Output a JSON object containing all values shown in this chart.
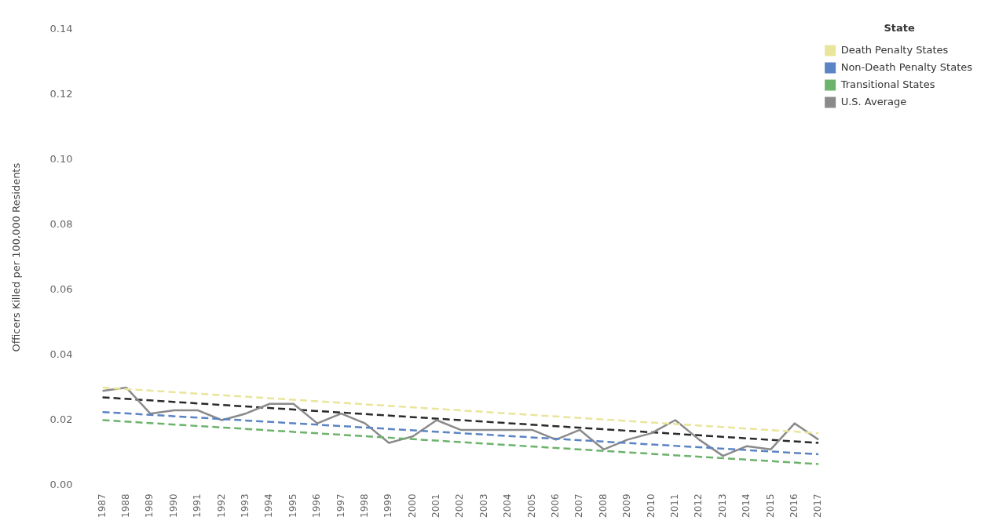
{
  "chart_data": {
    "type": "line",
    "ylabel": "Officers Killed per 100,000 Residents",
    "legend_title": "State",
    "legend": "top right",
    "grid": false,
    "marker": "none",
    "categories": [
      "1987",
      "1988",
      "1989",
      "1990",
      "1991",
      "1992",
      "1993",
      "1994",
      "1995",
      "1996",
      "1997",
      "1998",
      "1999",
      "2000",
      "2001",
      "2002",
      "2003",
      "2004",
      "2005",
      "2006",
      "2007",
      "2008",
      "2009",
      "2010",
      "2011",
      "2012",
      "2013",
      "2014",
      "2015",
      "2016",
      "2017"
    ],
    "ylim": [
      0,
      0.14
    ],
    "yticks": [
      {
        "value": 0,
        "label": "0.00"
      },
      {
        "value": 0.02,
        "label": "0.02"
      },
      {
        "value": 0.04,
        "label": "0.04"
      },
      {
        "value": 0.06,
        "label": "0.06"
      },
      {
        "value": 0.08,
        "label": "0.08"
      },
      {
        "value": 0.1,
        "label": "0.10"
      },
      {
        "value": 0.12,
        "label": "0.12"
      },
      {
        "value": 0.14,
        "label": "0.14"
      }
    ],
    "series": [
      {
        "name": "Death Penalty States",
        "color": "#e9e59a",
        "line_style": "dashed",
        "values": [
          0.03,
          null,
          null,
          null,
          null,
          null,
          null,
          null,
          null,
          null,
          null,
          null,
          null,
          null,
          null,
          null,
          null,
          null,
          null,
          null,
          null,
          null,
          null,
          null,
          null,
          null,
          null,
          null,
          null,
          null,
          0.016
        ]
      },
      {
        "name": "Non-Death Penalty States",
        "color": "#5b84c4",
        "line_style": "dashed",
        "values": [
          0.0225,
          null,
          null,
          null,
          null,
          null,
          null,
          null,
          null,
          null,
          null,
          null,
          null,
          null,
          null,
          null,
          null,
          null,
          null,
          null,
          null,
          null,
          null,
          null,
          null,
          null,
          null,
          null,
          null,
          null,
          0.0095
        ]
      },
      {
        "name": "Transitional States",
        "color": "#6cb36c",
        "line_style": "dashed",
        "values": [
          0.02,
          null,
          null,
          null,
          null,
          null,
          null,
          null,
          null,
          null,
          null,
          null,
          null,
          null,
          null,
          null,
          null,
          null,
          null,
          null,
          null,
          null,
          null,
          null,
          null,
          null,
          null,
          null,
          null,
          null,
          0.0065
        ]
      },
      {
        "name": "U.S. Average",
        "color": "#8a8a8a",
        "line_style": "solid",
        "values": [
          0.029,
          0.03,
          0.022,
          0.023,
          0.023,
          0.02,
          0.022,
          0.025,
          0.025,
          0.019,
          0.022,
          0.019,
          0.013,
          0.015,
          0.02,
          0.017,
          0.017,
          0.017,
          0.017,
          0.014,
          0.017,
          0.011,
          0.014,
          0.016,
          0.02,
          0.014,
          0.009,
          0.012,
          0.011,
          0.019,
          0.014
        ]
      },
      {
        "color": "#2a2a2a",
        "line_style": "dashed",
        "values": [
          0.027,
          null,
          null,
          null,
          null,
          null,
          null,
          null,
          null,
          null,
          null,
          null,
          null,
          null,
          null,
          null,
          null,
          null,
          null,
          null,
          null,
          null,
          null,
          null,
          null,
          null,
          null,
          null,
          null,
          null,
          0.013
        ]
      }
    ]
  }
}
